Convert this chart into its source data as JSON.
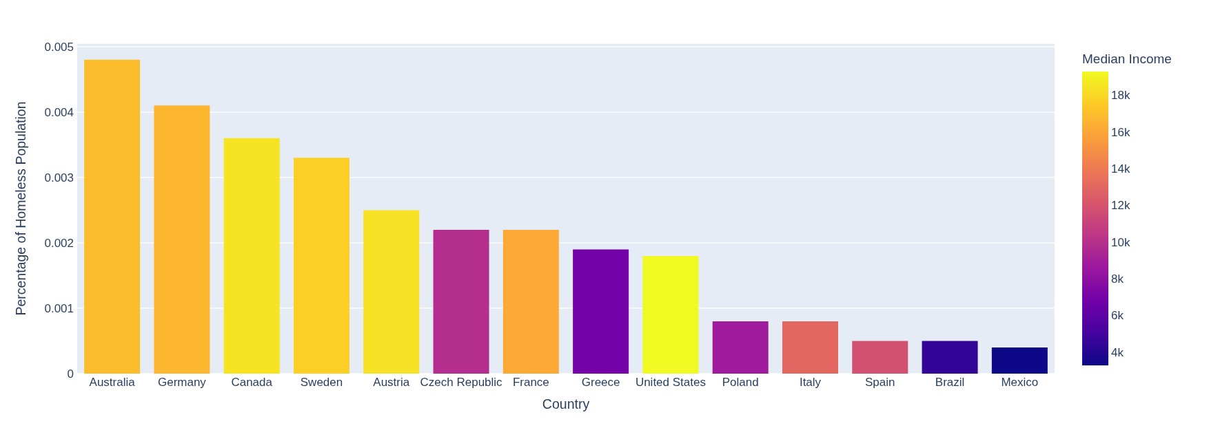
{
  "chart_data": {
    "type": "bar",
    "xlabel": "Country",
    "ylabel": "Percentage of Homeless Population",
    "clabel": "Median Income",
    "categories": [
      "Australia",
      "Germany",
      "Canada",
      "Sweden",
      "Austria",
      "Czech Republic",
      "France",
      "Greece",
      "United States",
      "Poland",
      "Italy",
      "Spain",
      "Brazil",
      "Mexico"
    ],
    "values": [
      0.0048,
      0.0041,
      0.0036,
      0.0033,
      0.0025,
      0.0022,
      0.0022,
      0.0019,
      0.0018,
      0.0008,
      0.0008,
      0.0005,
      0.0005,
      0.0004
    ],
    "cvalues": [
      17000,
      16700,
      18500,
      17700,
      18400,
      9900,
      16200,
      6900,
      19300,
      8800,
      13000,
      11800,
      4500,
      3300
    ],
    "clim": [
      3300,
      19300
    ],
    "cticks": [
      {
        "value": 4000,
        "label": "4k"
      },
      {
        "value": 6000,
        "label": "6k"
      },
      {
        "value": 8000,
        "label": "8k"
      },
      {
        "value": 10000,
        "label": "10k"
      },
      {
        "value": 12000,
        "label": "12k"
      },
      {
        "value": 14000,
        "label": "14k"
      },
      {
        "value": 16000,
        "label": "16k"
      },
      {
        "value": 18000,
        "label": "18k"
      }
    ],
    "ylim": [
      0,
      0.00505
    ],
    "yticks": [
      0,
      0.001,
      0.002,
      0.003,
      0.004,
      0.005
    ],
    "grid": "y"
  }
}
